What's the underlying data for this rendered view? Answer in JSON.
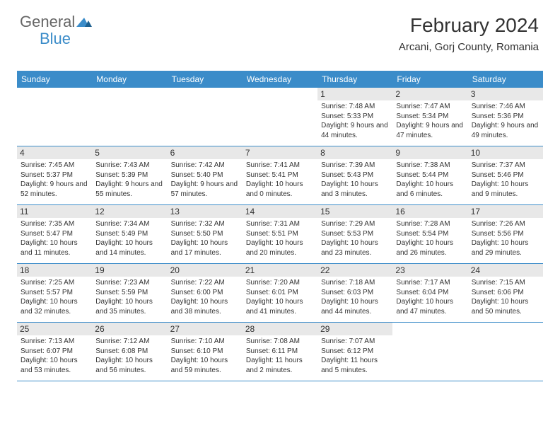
{
  "logo": {
    "text1": "General",
    "text2": "Blue",
    "mark_color": "#3b8cc9"
  },
  "header": {
    "title": "February 2024",
    "subtitle": "Arcani, Gorj County, Romania"
  },
  "colors": {
    "header_bg": "#3b8cc9",
    "header_text": "#ffffff",
    "daynum_bg": "#e8e8e8",
    "row_border": "#3b8cc9",
    "body_text": "#333333",
    "logo_gray": "#666666",
    "background": "#ffffff"
  },
  "typography": {
    "title_fontsize": 28,
    "subtitle_fontsize": 15,
    "dayheader_fontsize": 12,
    "daynum_fontsize": 12,
    "detail_fontsize": 10
  },
  "type": "table",
  "day_headers": [
    "Sunday",
    "Monday",
    "Tuesday",
    "Wednesday",
    "Thursday",
    "Friday",
    "Saturday"
  ],
  "weeks": [
    [
      null,
      null,
      null,
      null,
      {
        "n": "1",
        "sunrise": "7:48 AM",
        "sunset": "5:33 PM",
        "daylight": "9 hours and 44 minutes."
      },
      {
        "n": "2",
        "sunrise": "7:47 AM",
        "sunset": "5:34 PM",
        "daylight": "9 hours and 47 minutes."
      },
      {
        "n": "3",
        "sunrise": "7:46 AM",
        "sunset": "5:36 PM",
        "daylight": "9 hours and 49 minutes."
      }
    ],
    [
      {
        "n": "4",
        "sunrise": "7:45 AM",
        "sunset": "5:37 PM",
        "daylight": "9 hours and 52 minutes."
      },
      {
        "n": "5",
        "sunrise": "7:43 AM",
        "sunset": "5:39 PM",
        "daylight": "9 hours and 55 minutes."
      },
      {
        "n": "6",
        "sunrise": "7:42 AM",
        "sunset": "5:40 PM",
        "daylight": "9 hours and 57 minutes."
      },
      {
        "n": "7",
        "sunrise": "7:41 AM",
        "sunset": "5:41 PM",
        "daylight": "10 hours and 0 minutes."
      },
      {
        "n": "8",
        "sunrise": "7:39 AM",
        "sunset": "5:43 PM",
        "daylight": "10 hours and 3 minutes."
      },
      {
        "n": "9",
        "sunrise": "7:38 AM",
        "sunset": "5:44 PM",
        "daylight": "10 hours and 6 minutes."
      },
      {
        "n": "10",
        "sunrise": "7:37 AM",
        "sunset": "5:46 PM",
        "daylight": "10 hours and 9 minutes."
      }
    ],
    [
      {
        "n": "11",
        "sunrise": "7:35 AM",
        "sunset": "5:47 PM",
        "daylight": "10 hours and 11 minutes."
      },
      {
        "n": "12",
        "sunrise": "7:34 AM",
        "sunset": "5:49 PM",
        "daylight": "10 hours and 14 minutes."
      },
      {
        "n": "13",
        "sunrise": "7:32 AM",
        "sunset": "5:50 PM",
        "daylight": "10 hours and 17 minutes."
      },
      {
        "n": "14",
        "sunrise": "7:31 AM",
        "sunset": "5:51 PM",
        "daylight": "10 hours and 20 minutes."
      },
      {
        "n": "15",
        "sunrise": "7:29 AM",
        "sunset": "5:53 PM",
        "daylight": "10 hours and 23 minutes."
      },
      {
        "n": "16",
        "sunrise": "7:28 AM",
        "sunset": "5:54 PM",
        "daylight": "10 hours and 26 minutes."
      },
      {
        "n": "17",
        "sunrise": "7:26 AM",
        "sunset": "5:56 PM",
        "daylight": "10 hours and 29 minutes."
      }
    ],
    [
      {
        "n": "18",
        "sunrise": "7:25 AM",
        "sunset": "5:57 PM",
        "daylight": "10 hours and 32 minutes."
      },
      {
        "n": "19",
        "sunrise": "7:23 AM",
        "sunset": "5:59 PM",
        "daylight": "10 hours and 35 minutes."
      },
      {
        "n": "20",
        "sunrise": "7:22 AM",
        "sunset": "6:00 PM",
        "daylight": "10 hours and 38 minutes."
      },
      {
        "n": "21",
        "sunrise": "7:20 AM",
        "sunset": "6:01 PM",
        "daylight": "10 hours and 41 minutes."
      },
      {
        "n": "22",
        "sunrise": "7:18 AM",
        "sunset": "6:03 PM",
        "daylight": "10 hours and 44 minutes."
      },
      {
        "n": "23",
        "sunrise": "7:17 AM",
        "sunset": "6:04 PM",
        "daylight": "10 hours and 47 minutes."
      },
      {
        "n": "24",
        "sunrise": "7:15 AM",
        "sunset": "6:06 PM",
        "daylight": "10 hours and 50 minutes."
      }
    ],
    [
      {
        "n": "25",
        "sunrise": "7:13 AM",
        "sunset": "6:07 PM",
        "daylight": "10 hours and 53 minutes."
      },
      {
        "n": "26",
        "sunrise": "7:12 AM",
        "sunset": "6:08 PM",
        "daylight": "10 hours and 56 minutes."
      },
      {
        "n": "27",
        "sunrise": "7:10 AM",
        "sunset": "6:10 PM",
        "daylight": "10 hours and 59 minutes."
      },
      {
        "n": "28",
        "sunrise": "7:08 AM",
        "sunset": "6:11 PM",
        "daylight": "11 hours and 2 minutes."
      },
      {
        "n": "29",
        "sunrise": "7:07 AM",
        "sunset": "6:12 PM",
        "daylight": "11 hours and 5 minutes."
      },
      null,
      null
    ]
  ],
  "labels": {
    "sunrise": "Sunrise: ",
    "sunset": "Sunset: ",
    "daylight": "Daylight: "
  }
}
